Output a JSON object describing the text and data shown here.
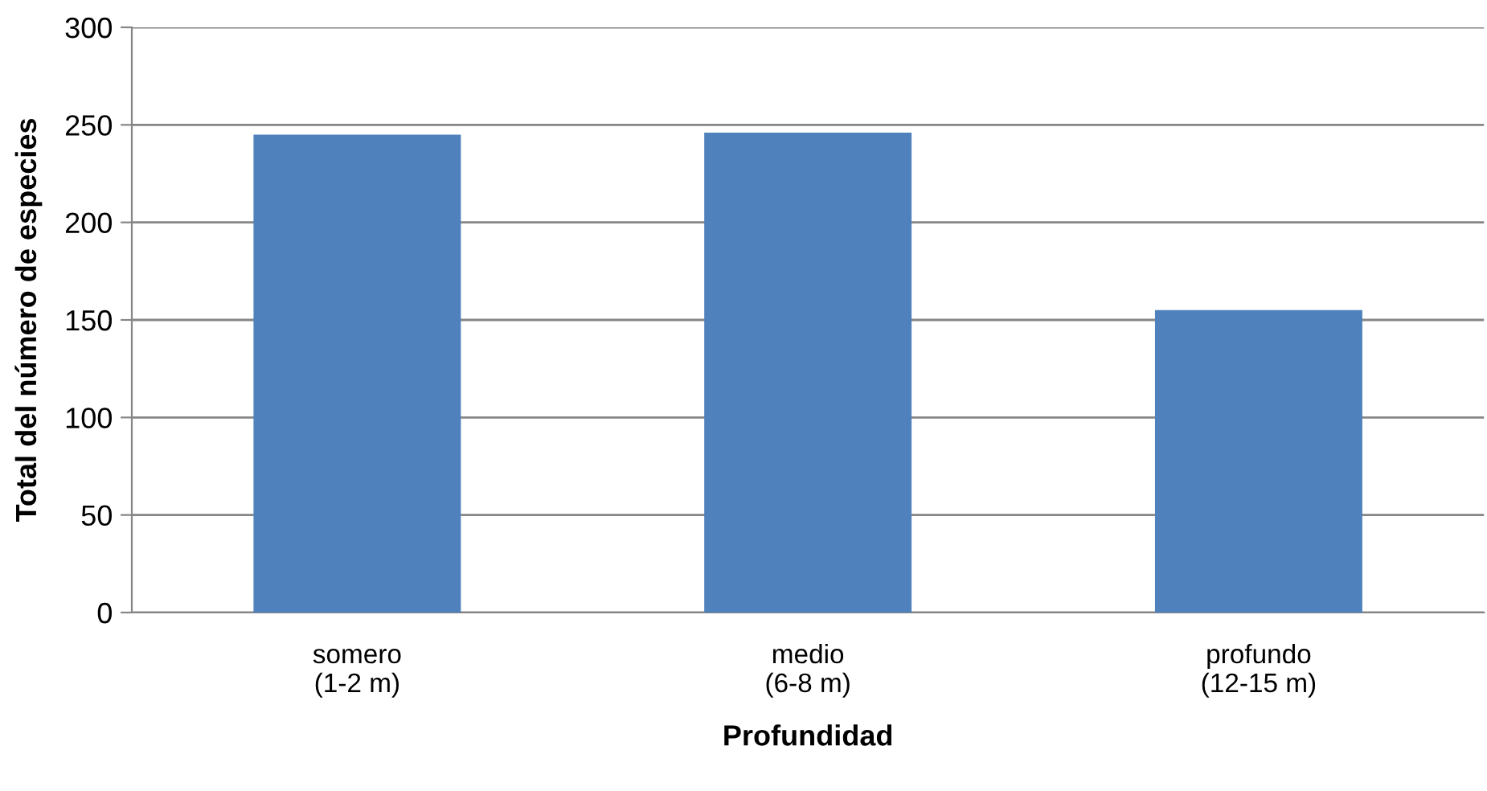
{
  "chart_data": {
    "type": "bar",
    "xlabel": "Profundidad",
    "ylabel": "Total del número de especies",
    "categories": [
      "somero\n(1-2 m)",
      "medio\n(6-8 m)",
      "profundo\n(12-15 m)"
    ],
    "values": [
      245,
      246,
      155
    ],
    "color": "#4f81bd",
    "ylim": [
      0,
      300
    ],
    "yticks": [
      0,
      50,
      100,
      150,
      200,
      250,
      300
    ],
    "grid": "y",
    "legend": false
  }
}
